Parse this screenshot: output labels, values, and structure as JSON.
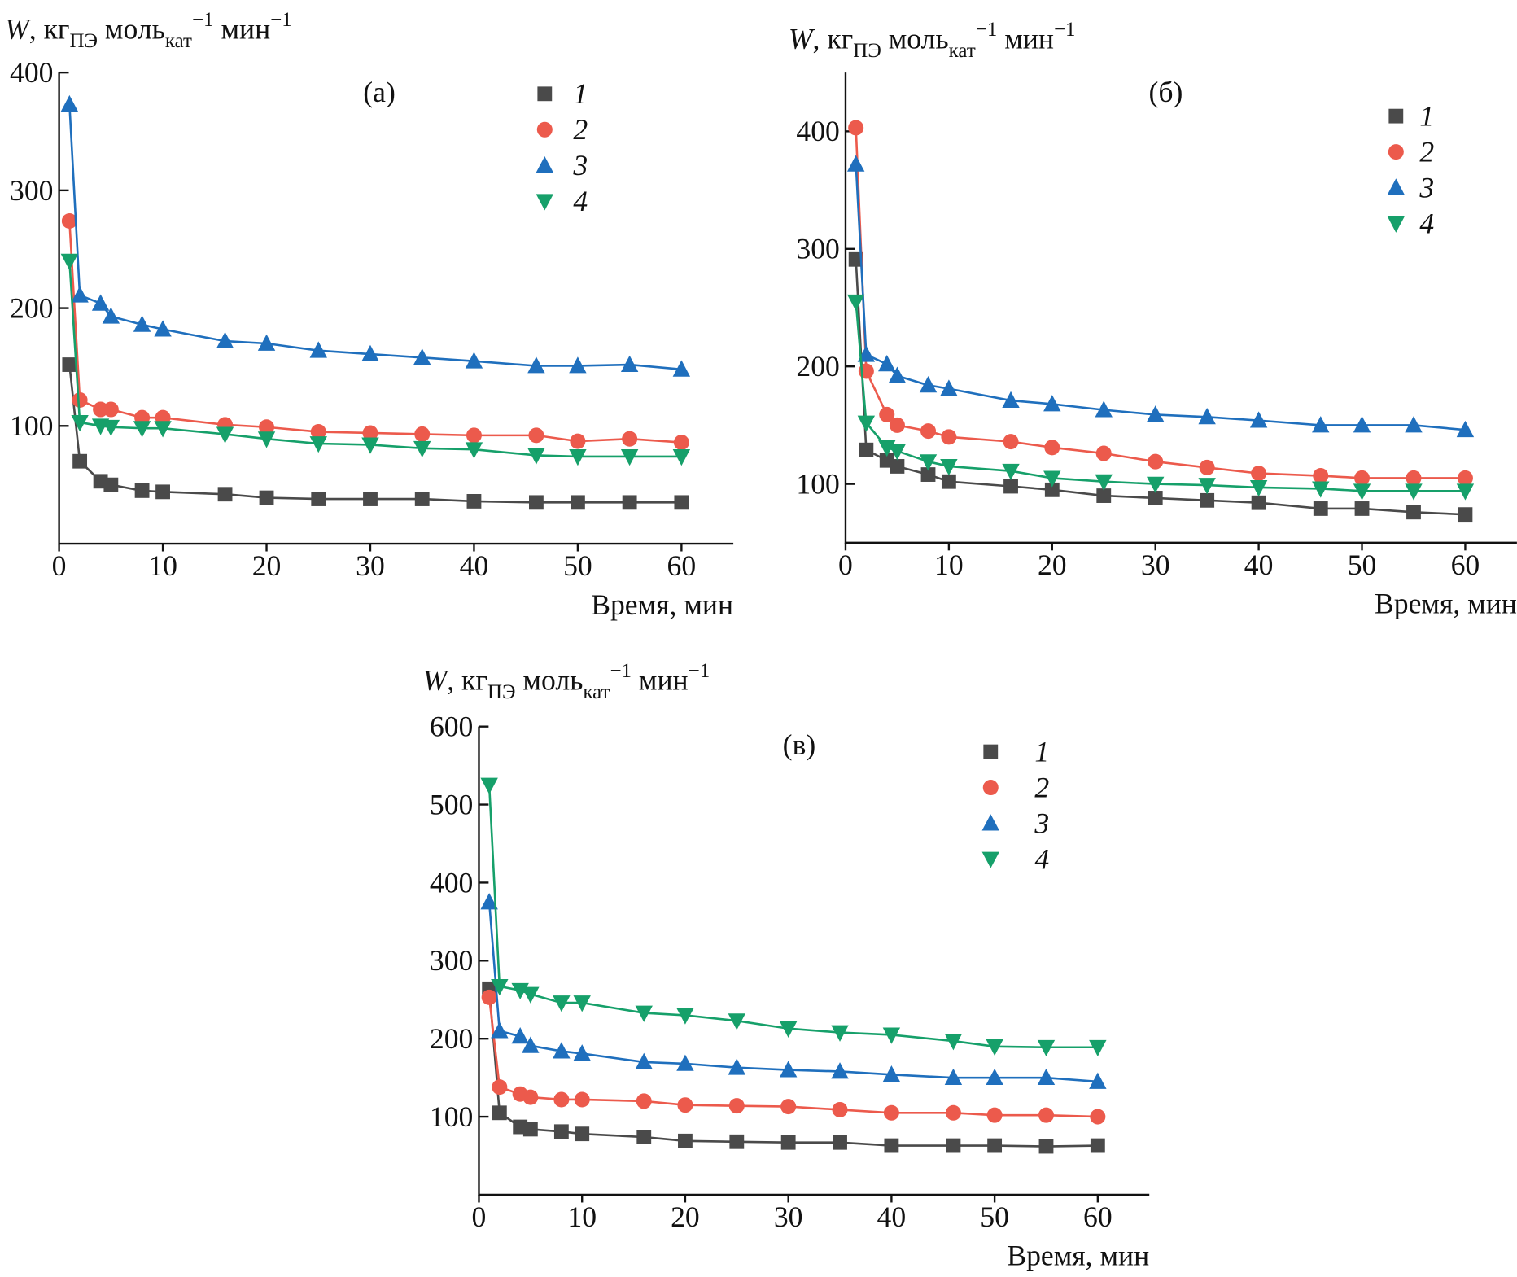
{
  "chart_data": [
    {
      "type": "line",
      "panel_label": "(а)",
      "y_label": [
        "W",
        ", кг",
        "ПЭ",
        " моль",
        "кат",
        "−1",
        " мин",
        "−1"
      ],
      "x_label": "Время, мин",
      "xlim": [
        0,
        65
      ],
      "xticks": [
        0,
        10,
        20,
        30,
        40,
        50,
        60
      ],
      "ylim": [
        0,
        400
      ],
      "yticks": [
        100,
        200,
        300,
        400
      ],
      "x": [
        1,
        2,
        4,
        5,
        8,
        10,
        16,
        20,
        25,
        30,
        35,
        40,
        46,
        50,
        55,
        60
      ],
      "series": [
        {
          "name": "1",
          "color": "#4a4a4a",
          "marker": "square",
          "values": [
            152,
            70,
            53,
            50,
            45,
            44,
            42,
            39,
            38,
            38,
            38,
            36,
            35,
            35,
            35,
            35
          ]
        },
        {
          "name": "2",
          "color": "#ec5a4c",
          "marker": "circle",
          "values": [
            274,
            122,
            114,
            114,
            107,
            107,
            101,
            99,
            95,
            94,
            93,
            92,
            92,
            87,
            89,
            86
          ]
        },
        {
          "name": "3",
          "color": "#1f6fbd",
          "marker": "triangle-up",
          "values": [
            373,
            211,
            204,
            193,
            186,
            182,
            172,
            170,
            164,
            161,
            158,
            155,
            151,
            151,
            152,
            148
          ]
        },
        {
          "name": "4",
          "color": "#16a06a",
          "marker": "triangle-down",
          "values": [
            240,
            103,
            100,
            99,
            98,
            98,
            93,
            89,
            85,
            84,
            81,
            80,
            75,
            74,
            74,
            74
          ]
        }
      ]
    },
    {
      "type": "line",
      "panel_label": "(б)",
      "y_label": [
        "W",
        ", кг",
        "ПЭ",
        " моль",
        "кат",
        "−1",
        " мин",
        "−1"
      ],
      "x_label": "Время, мин",
      "xlim": [
        0,
        65
      ],
      "xticks": [
        0,
        10,
        20,
        30,
        40,
        50,
        60
      ],
      "ylim": [
        50,
        450
      ],
      "yticks": [
        100,
        200,
        300,
        400
      ],
      "x": [
        1,
        2,
        4,
        5,
        8,
        10,
        16,
        20,
        25,
        30,
        35,
        40,
        46,
        50,
        55,
        60
      ],
      "series": [
        {
          "name": "1",
          "color": "#4a4a4a",
          "marker": "square",
          "values": [
            291,
            129,
            120,
            115,
            108,
            102,
            98,
            95,
            90,
            88,
            86,
            84,
            79,
            79,
            76,
            74
          ]
        },
        {
          "name": "2",
          "color": "#ec5a4c",
          "marker": "circle",
          "values": [
            403,
            196,
            159,
            150,
            145,
            140,
            136,
            131,
            126,
            119,
            114,
            109,
            107,
            105,
            105,
            105
          ]
        },
        {
          "name": "3",
          "color": "#1f6fbd",
          "marker": "triangle-up",
          "values": [
            372,
            210,
            202,
            192,
            184,
            181,
            171,
            168,
            163,
            159,
            157,
            154,
            150,
            150,
            150,
            146
          ]
        },
        {
          "name": "4",
          "color": "#16a06a",
          "marker": "triangle-down",
          "values": [
            255,
            152,
            131,
            128,
            119,
            115,
            111,
            105,
            102,
            100,
            99,
            97,
            96,
            94,
            94,
            94
          ]
        }
      ]
    },
    {
      "type": "line",
      "panel_label": "(в)",
      "y_label": [
        "W",
        ", кг",
        "ПЭ",
        " моль",
        "кат",
        "−1",
        " мин",
        "−1"
      ],
      "x_label": "Время, мин",
      "xlim": [
        0,
        65
      ],
      "xticks": [
        0,
        10,
        20,
        30,
        40,
        50,
        60
      ],
      "ylim": [
        0,
        600
      ],
      "yticks": [
        100,
        200,
        300,
        400,
        500,
        600
      ],
      "x": [
        1,
        2,
        4,
        5,
        8,
        10,
        16,
        20,
        25,
        30,
        35,
        40,
        46,
        50,
        55,
        60
      ],
      "series": [
        {
          "name": "1",
          "color": "#4a4a4a",
          "marker": "square",
          "values": [
            264,
            105,
            87,
            84,
            81,
            78,
            74,
            69,
            68,
            67,
            67,
            63,
            63,
            63,
            62,
            63
          ]
        },
        {
          "name": "2",
          "color": "#ec5a4c",
          "marker": "circle",
          "values": [
            253,
            138,
            129,
            125,
            122,
            122,
            120,
            115,
            114,
            113,
            109,
            105,
            105,
            102,
            102,
            100
          ]
        },
        {
          "name": "3",
          "color": "#1f6fbd",
          "marker": "triangle-up",
          "values": [
            375,
            210,
            203,
            191,
            184,
            181,
            170,
            168,
            163,
            160,
            158,
            154,
            150,
            150,
            150,
            145
          ]
        },
        {
          "name": "4",
          "color": "#16a06a",
          "marker": "triangle-down",
          "values": [
            525,
            267,
            262,
            257,
            246,
            246,
            233,
            230,
            223,
            213,
            208,
            205,
            197,
            190,
            189,
            189
          ]
        }
      ]
    }
  ]
}
